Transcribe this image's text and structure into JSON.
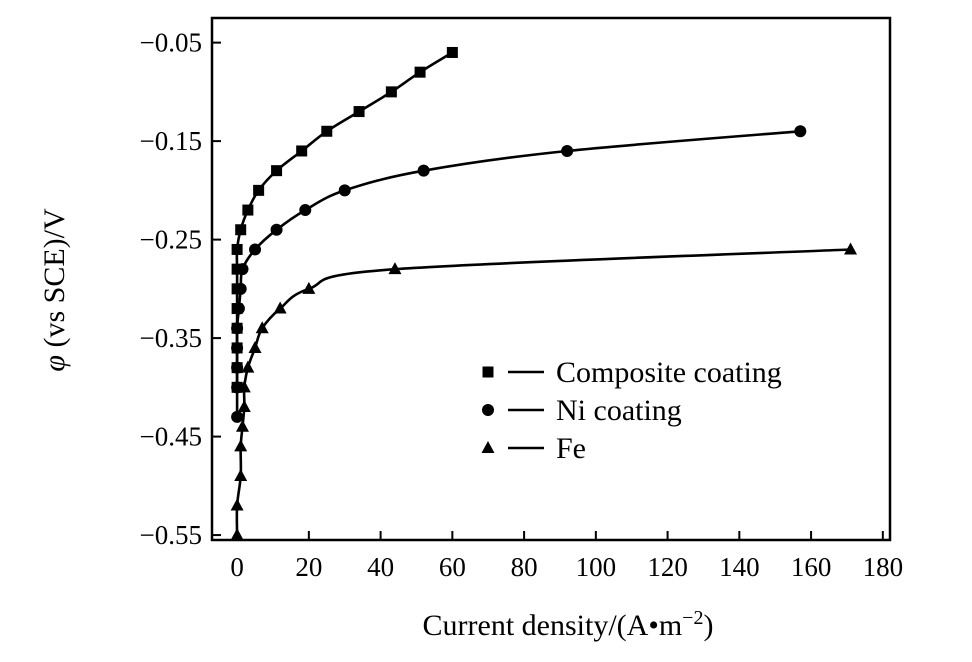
{
  "chart_data": {
    "type": "line",
    "title": "",
    "xlabel": "Current density/(A•m",
    "xlabel_sup": "−2",
    "xlabel_close": ")",
    "ylabel_symbol": "φ",
    "ylabel_rest": " (vs SCE)/V",
    "xlim": [
      -7,
      182
    ],
    "ylim": [
      -0.555,
      -0.025
    ],
    "x_ticks": [
      0,
      20,
      40,
      60,
      80,
      100,
      120,
      140,
      160,
      180
    ],
    "x_tick_labels": [
      "0",
      "20",
      "40",
      "60",
      "80",
      "100",
      "120",
      "140",
      "160",
      "180"
    ],
    "y_ticks": [
      -0.05,
      -0.15,
      -0.25,
      -0.35,
      -0.45,
      -0.55
    ],
    "y_tick_labels": [
      "−0.05",
      "−0.15",
      "−0.25",
      "−0.35",
      "−0.45",
      "−0.55"
    ],
    "grid": false,
    "legend_position": "right-middle",
    "series": [
      {
        "name": "Composite coating",
        "marker": "square",
        "points": [
          [
            0,
            -0.4
          ],
          [
            0,
            -0.38
          ],
          [
            0,
            -0.36
          ],
          [
            0,
            -0.34
          ],
          [
            0,
            -0.32
          ],
          [
            0,
            -0.3
          ],
          [
            0,
            -0.28
          ],
          [
            0,
            -0.26
          ],
          [
            1,
            -0.24
          ],
          [
            3,
            -0.22
          ],
          [
            6,
            -0.2
          ],
          [
            11,
            -0.18
          ],
          [
            18,
            -0.16
          ],
          [
            25,
            -0.14
          ],
          [
            34,
            -0.12
          ],
          [
            43,
            -0.1
          ],
          [
            51,
            -0.08
          ],
          [
            60,
            -0.06
          ]
        ]
      },
      {
        "name": "Ni coating",
        "marker": "circle",
        "points": [
          [
            0,
            -0.43
          ],
          [
            0,
            -0.4
          ],
          [
            0,
            -0.38
          ],
          [
            0,
            -0.36
          ],
          [
            0,
            -0.34
          ],
          [
            0.5,
            -0.32
          ],
          [
            1,
            -0.3
          ],
          [
            1.5,
            -0.28
          ],
          [
            5,
            -0.26
          ],
          [
            11,
            -0.24
          ],
          [
            19,
            -0.22
          ],
          [
            30,
            -0.2
          ],
          [
            52,
            -0.18
          ],
          [
            92,
            -0.16
          ],
          [
            157,
            -0.14
          ]
        ]
      },
      {
        "name": "Fe",
        "marker": "triangle",
        "points": [
          [
            0,
            -0.55
          ],
          [
            0,
            -0.52
          ],
          [
            1,
            -0.49
          ],
          [
            1,
            -0.46
          ],
          [
            1.5,
            -0.44
          ],
          [
            2,
            -0.42
          ],
          [
            2,
            -0.4
          ],
          [
            3,
            -0.38
          ],
          [
            5,
            -0.36
          ],
          [
            7,
            -0.34
          ],
          [
            12,
            -0.32
          ],
          [
            20,
            -0.3
          ],
          [
            44,
            -0.28
          ],
          [
            171,
            -0.26
          ]
        ]
      }
    ]
  }
}
